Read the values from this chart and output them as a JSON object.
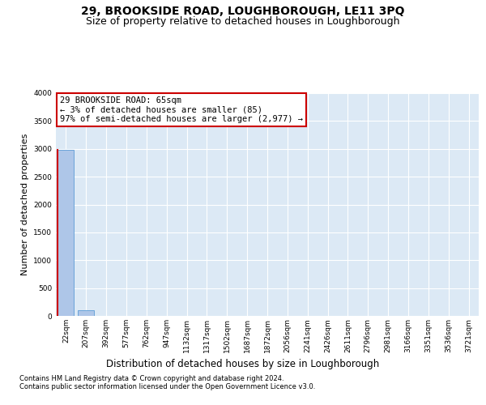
{
  "title": "29, BROOKSIDE ROAD, LOUGHBOROUGH, LE11 3PQ",
  "subtitle": "Size of property relative to detached houses in Loughborough",
  "xlabel": "Distribution of detached houses by size in Loughborough",
  "ylabel": "Number of detached properties",
  "categories": [
    "22sqm",
    "207sqm",
    "392sqm",
    "577sqm",
    "762sqm",
    "947sqm",
    "1132sqm",
    "1317sqm",
    "1502sqm",
    "1687sqm",
    "1872sqm",
    "2056sqm",
    "2241sqm",
    "2426sqm",
    "2611sqm",
    "2796sqm",
    "2981sqm",
    "3166sqm",
    "3351sqm",
    "3536sqm",
    "3721sqm"
  ],
  "values": [
    2985,
    105,
    3,
    2,
    1,
    1,
    1,
    0,
    0,
    0,
    0,
    0,
    0,
    0,
    0,
    0,
    0,
    0,
    0,
    0,
    0
  ],
  "bar_color": "#aec6e8",
  "bar_edge_color": "#5b9bd5",
  "highlight_bar_index": 0,
  "highlight_color": "#cc0000",
  "ylim": [
    0,
    4000
  ],
  "yticks": [
    0,
    500,
    1000,
    1500,
    2000,
    2500,
    3000,
    3500,
    4000
  ],
  "annotation_box_text": "29 BROOKSIDE ROAD: 65sqm\n← 3% of detached houses are smaller (85)\n97% of semi-detached houses are larger (2,977) →",
  "annotation_box_color": "#cc0000",
  "annotation_box_bg": "#ffffff",
  "bg_color": "#dce9f5",
  "grid_color": "#ffffff",
  "footer_line1": "Contains HM Land Registry data © Crown copyright and database right 2024.",
  "footer_line2": "Contains public sector information licensed under the Open Government Licence v3.0.",
  "title_fontsize": 10,
  "subtitle_fontsize": 9,
  "tick_fontsize": 6.5,
  "ylabel_fontsize": 8,
  "xlabel_fontsize": 8.5,
  "annotation_fontsize": 7.5
}
